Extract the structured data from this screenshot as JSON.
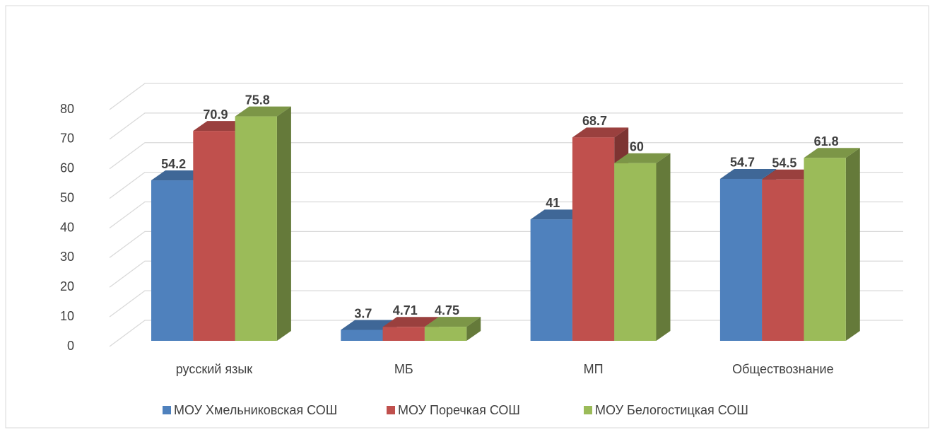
{
  "chart_data": {
    "type": "bar3d",
    "categories": [
      "русский язык",
      "МБ",
      "МП",
      "Обществознание"
    ],
    "series": [
      {
        "name": "МОУ Хмельниковская СОШ",
        "color": "#4f81bd",
        "values": [
          54.2,
          3.7,
          41,
          54.7
        ]
      },
      {
        "name": "МОУ Поречкая СОШ",
        "color": "#c0504d",
        "values": [
          70.9,
          4.71,
          68.7,
          54.5
        ]
      },
      {
        "name": "МОУ Белогостицкая СОШ",
        "color": "#9bbb59",
        "values": [
          75.8,
          4.75,
          60,
          61.8
        ]
      }
    ],
    "ylim": [
      0,
      80
    ],
    "yticks": [
      0,
      10,
      20,
      30,
      40,
      50,
      60,
      70,
      80
    ],
    "grid": true,
    "legend": "bottom"
  }
}
